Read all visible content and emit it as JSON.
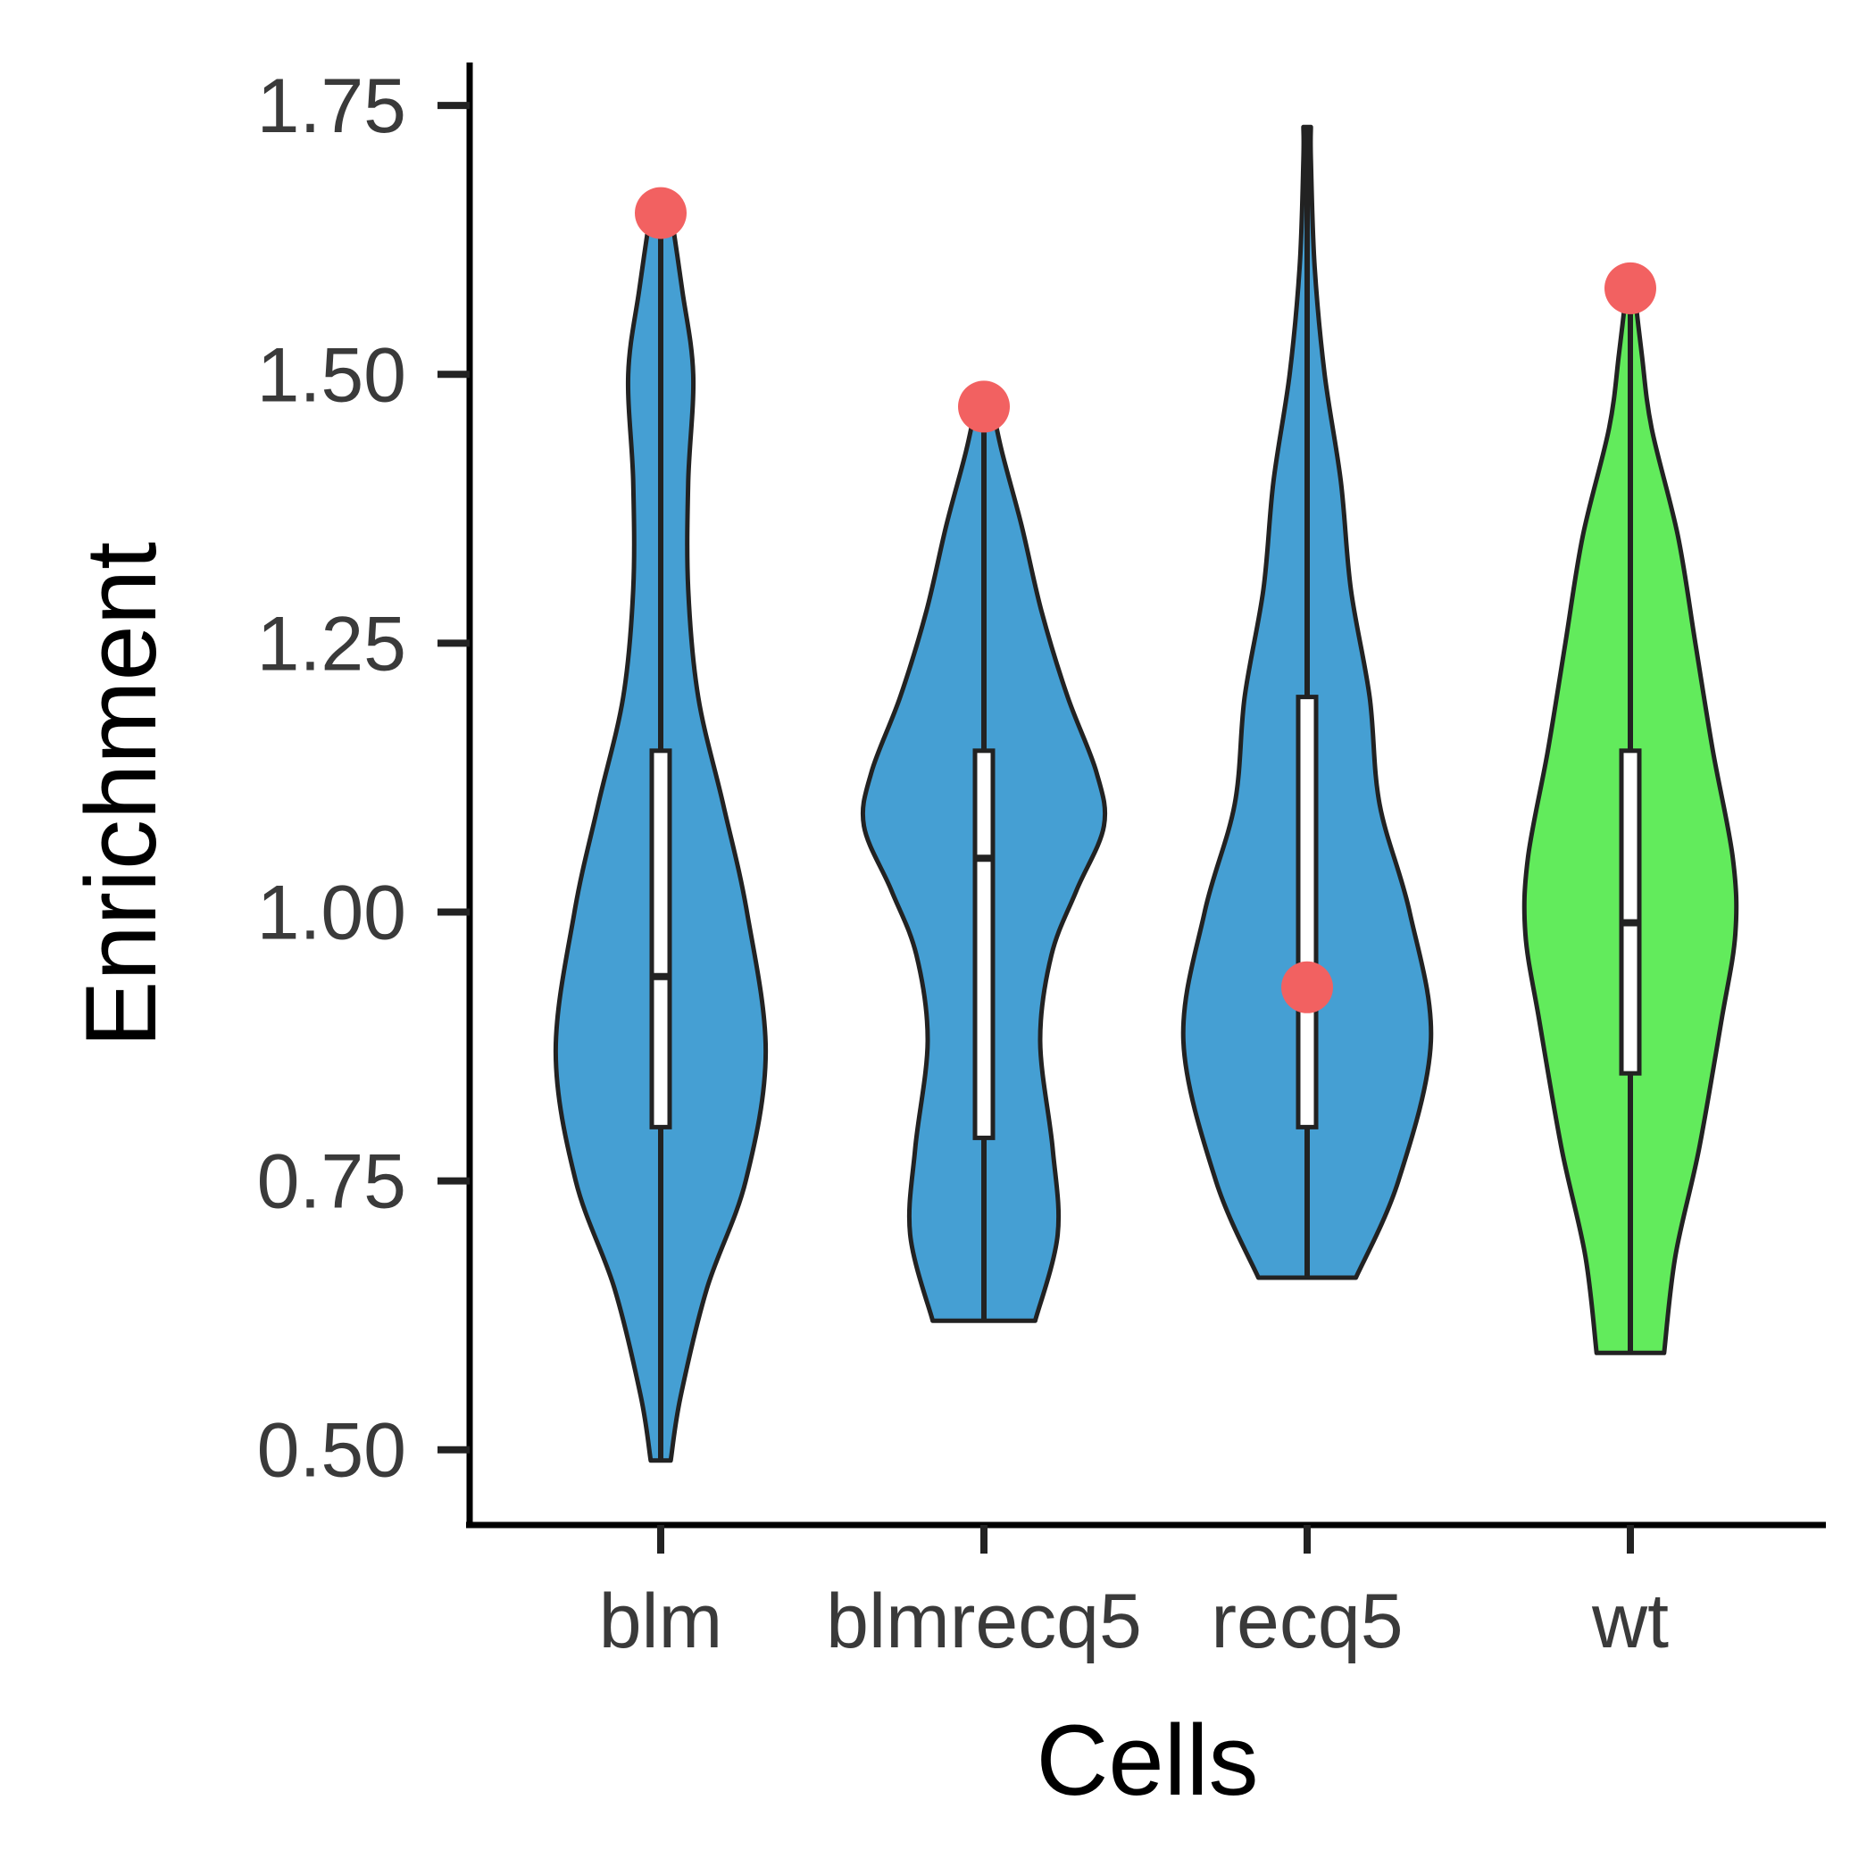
{
  "chart_data": {
    "type": "violin",
    "xlabel": "Cells",
    "ylabel": "Enrichment",
    "ylim": [
      0.43,
      1.79
    ],
    "yticks": [
      0.5,
      0.75,
      1.0,
      1.25,
      1.5,
      1.75
    ],
    "ytick_labels": [
      "0.50",
      "0.75",
      "1.00",
      "1.25",
      "1.50",
      "1.75"
    ],
    "categories": [
      "blm",
      "blmrecq5",
      "recq5",
      "wt"
    ],
    "grid": false,
    "legend": "none",
    "colors": {
      "violin_default": "#459FD3",
      "violin_highlight": "#62EB5C",
      "outline": "#222222",
      "marker": "#F26161",
      "axis": "#000000"
    },
    "violins": [
      {
        "category": "blm",
        "fill": "#459FD3",
        "min": 0.49,
        "max": 1.66,
        "profile": [
          [
            0.49,
            0.08
          ],
          [
            0.55,
            0.16
          ],
          [
            0.65,
            0.37
          ],
          [
            0.75,
            0.68
          ],
          [
            0.87,
            0.84
          ],
          [
            1.0,
            0.69
          ],
          [
            1.1,
            0.5
          ],
          [
            1.2,
            0.3
          ],
          [
            1.3,
            0.22
          ],
          [
            1.4,
            0.22
          ],
          [
            1.5,
            0.26
          ],
          [
            1.58,
            0.17
          ],
          [
            1.66,
            0.07
          ]
        ],
        "box": {
          "q1": 0.8,
          "median": 0.94,
          "q3": 1.15
        },
        "marker": 1.65
      },
      {
        "category": "blmrecq5",
        "fill": "#459FD3",
        "min": 0.62,
        "max": 1.48,
        "profile": [
          [
            0.62,
            0.41
          ],
          [
            0.7,
            0.59
          ],
          [
            0.78,
            0.55
          ],
          [
            0.88,
            0.45
          ],
          [
            0.96,
            0.54
          ],
          [
            1.02,
            0.74
          ],
          [
            1.08,
            0.96
          ],
          [
            1.13,
            0.9
          ],
          [
            1.2,
            0.67
          ],
          [
            1.28,
            0.46
          ],
          [
            1.36,
            0.3
          ],
          [
            1.43,
            0.14
          ],
          [
            1.48,
            0.05
          ]
        ],
        "box": {
          "q1": 0.79,
          "median": 1.05,
          "q3": 1.15
        },
        "marker": 1.47
      },
      {
        "category": "recq5",
        "fill": "#459FD3",
        "min": 0.66,
        "max": 1.73,
        "profile": [
          [
            0.66,
            0.39
          ],
          [
            0.75,
            0.73
          ],
          [
            0.88,
            0.99
          ],
          [
            1.0,
            0.82
          ],
          [
            1.1,
            0.58
          ],
          [
            1.2,
            0.5
          ],
          [
            1.3,
            0.35
          ],
          [
            1.4,
            0.27
          ],
          [
            1.5,
            0.14
          ],
          [
            1.6,
            0.06
          ],
          [
            1.7,
            0.03
          ],
          [
            1.73,
            0.03
          ]
        ],
        "box": {
          "q1": 0.8,
          "median": 0.94,
          "q3": 1.2
        },
        "marker": 0.93
      },
      {
        "category": "wt",
        "fill": "#62EB5C",
        "min": 0.59,
        "max": 1.59,
        "profile": [
          [
            0.59,
            0.27
          ],
          [
            0.68,
            0.36
          ],
          [
            0.78,
            0.55
          ],
          [
            0.9,
            0.73
          ],
          [
            0.98,
            0.84
          ],
          [
            1.05,
            0.82
          ],
          [
            1.15,
            0.66
          ],
          [
            1.25,
            0.52
          ],
          [
            1.35,
            0.38
          ],
          [
            1.45,
            0.17
          ],
          [
            1.52,
            0.09
          ],
          [
            1.59,
            0.02
          ]
        ],
        "box": {
          "q1": 0.85,
          "median": 0.99,
          "q3": 1.15
        },
        "marker": 1.58
      }
    ]
  }
}
